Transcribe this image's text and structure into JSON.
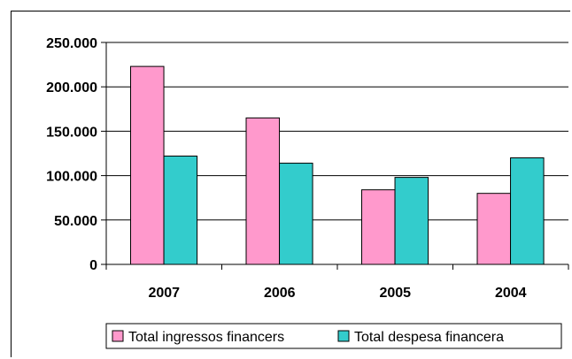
{
  "chart_data": {
    "type": "bar",
    "categories": [
      "2007",
      "2006",
      "2005",
      "2004"
    ],
    "series": [
      {
        "name": "Total ingressos financers",
        "values": [
          223000,
          165000,
          84000,
          80000
        ],
        "color": "#FF99CC"
      },
      {
        "name": "Total despesa financera",
        "values": [
          122000,
          114000,
          98000,
          120000
        ],
        "color": "#33CCCC"
      }
    ],
    "ylim": [
      0,
      250000
    ],
    "yticks": [
      0,
      50000,
      100000,
      150000,
      200000,
      250000
    ],
    "ytick_labels": [
      "0",
      "50.000",
      "100.000",
      "150.000",
      "200.000",
      "250.000"
    ],
    "grid": true,
    "legend_position": "bottom"
  }
}
